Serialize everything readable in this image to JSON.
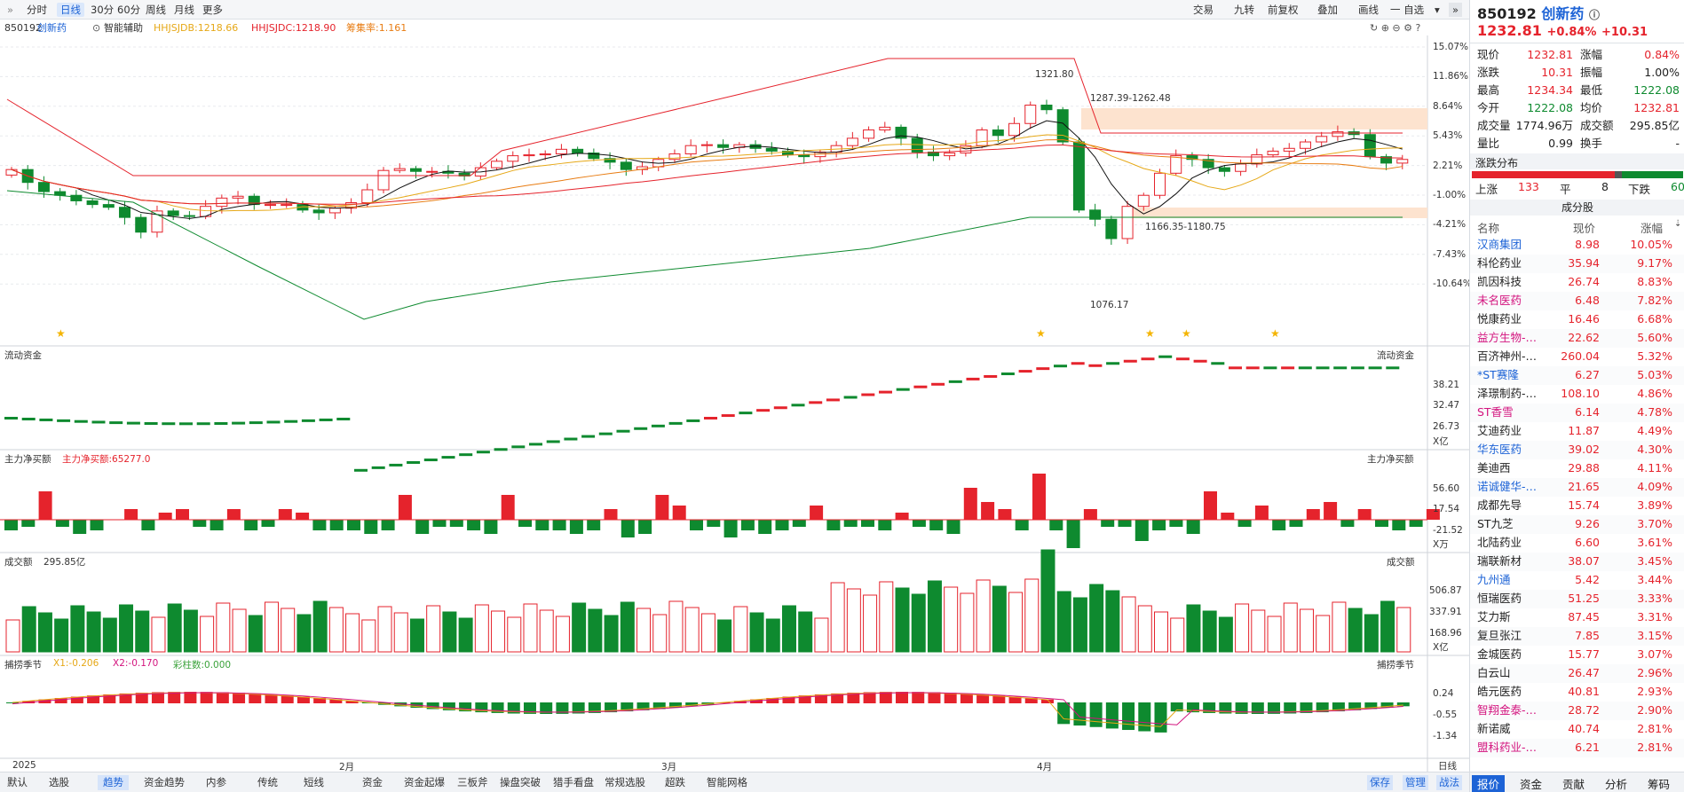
{
  "toolbar": {
    "period_tabs": [
      "分时",
      "日线",
      "30分",
      "60分",
      "周线",
      "月线",
      "更多"
    ],
    "active_tab": "日线",
    "right_buttons": [
      "交易",
      "九转",
      "前复权",
      "叠加",
      "画线",
      "一 自选"
    ]
  },
  "info": {
    "code": "850192",
    "name": "创新药",
    "smart": "智能辅助",
    "hhjsjdb": "HHJSJDB:1218.66",
    "hhjsjdc": "HHJSJDC:1218.90",
    "ratio": "筹集率:1.161"
  },
  "price_axis": [
    "15.07%",
    "11.86%",
    "8.64%",
    "5.43%",
    "2.21%",
    "-1.00%",
    "-4.21%",
    "-7.43%",
    "-10.64%"
  ],
  "annotations": {
    "high": "1321.80",
    "range1": "1287.39-1262.48",
    "range2": "1166.35-1180.75",
    "low": "1076.17"
  },
  "panels": {
    "flow": {
      "title": "流动资金",
      "right_title": "流动资金",
      "axis": [
        "38.21",
        "32.47",
        "26.73"
      ],
      "unit": "X亿"
    },
    "net": {
      "title": "主力净买额",
      "value": "主力净买额:65277.0",
      "right_title": "主力净买额",
      "axis": [
        "56.60",
        "17.54",
        "-21.52"
      ],
      "unit": "X万"
    },
    "vol": {
      "title": "成交额",
      "value": "295.85亿",
      "right_title": "成交额",
      "axis": [
        "506.87",
        "337.91",
        "168.96"
      ],
      "unit": "X亿"
    },
    "season": {
      "title": "捕捞季节",
      "x1": "X1:-0.206",
      "x2": "X2:-0.170",
      "bars": "彩柱数:0.000",
      "right_title": "捕捞季节",
      "axis": [
        "0.24",
        "-0.55",
        "-1.34"
      ]
    }
  },
  "date_axis": [
    "2025",
    "2月",
    "3月",
    "4月"
  ],
  "bottom_tabs": [
    "默认",
    "选股",
    "趋势",
    "资金趋势",
    "内参",
    "传统",
    "短线",
    "资金",
    "资金起爆",
    "三板斧",
    "操盘突破",
    "猎手看盘",
    "常规选股",
    "超跌",
    "智能网格"
  ],
  "active_bottom": "趋势",
  "bottom_right": [
    "保存",
    "管理",
    "战法",
    "日线"
  ],
  "side": {
    "code": "850192",
    "name": "创新药",
    "price": "1232.81",
    "chg_pct": "+0.84%",
    "chg": "+10.31",
    "quotes": [
      {
        "l1": "现价",
        "v1": "1232.81",
        "c1": "red",
        "l2": "涨幅",
        "v2": "0.84%",
        "c2": "red"
      },
      {
        "l1": "涨跌",
        "v1": "10.31",
        "c1": "red",
        "l2": "振幅",
        "v2": "1.00%",
        "c2": "dark"
      },
      {
        "l1": "最高",
        "v1": "1234.34",
        "c1": "red",
        "l2": "最低",
        "v2": "1222.08",
        "c2": "green"
      },
      {
        "l1": "今开",
        "v1": "1222.08",
        "c1": "green",
        "l2": "均价",
        "v2": "1232.81",
        "c2": "red"
      },
      {
        "l1": "成交量",
        "v1": "1774.96万",
        "c1": "dark",
        "l2": "成交额",
        "v2": "295.85亿",
        "c2": "dark"
      },
      {
        "l1": "量比",
        "v1": "0.99",
        "c1": "dark",
        "l2": "换手",
        "v2": "-",
        "c2": "dark"
      }
    ],
    "dist_title": "涨跌分布",
    "up_label": "上涨",
    "up": "133",
    "flat_label": "平",
    "flat": "8",
    "down_label": "下跌",
    "down": "60",
    "cons_title": "成分股",
    "headers": [
      "名称",
      "现价",
      "涨幅"
    ],
    "stocks": [
      {
        "n": "汉商集团",
        "p": "8.98",
        "c": "10.05%",
        "nc": "blue"
      },
      {
        "n": "科伦药业",
        "p": "35.94",
        "c": "9.17%",
        "nc": "dark"
      },
      {
        "n": "凯因科技",
        "p": "26.74",
        "c": "8.83%",
        "nc": "dark"
      },
      {
        "n": "未名医药",
        "p": "6.48",
        "c": "7.82%",
        "nc": "mag"
      },
      {
        "n": "悦康药业",
        "p": "16.46",
        "c": "6.68%",
        "nc": "dark"
      },
      {
        "n": "益方生物-…",
        "p": "22.62",
        "c": "5.60%",
        "nc": "mag"
      },
      {
        "n": "百济神州-…",
        "p": "260.04",
        "c": "5.32%",
        "nc": "dark"
      },
      {
        "n": "*ST赛隆",
        "p": "6.27",
        "c": "5.03%",
        "nc": "blue"
      },
      {
        "n": "泽璟制药-…",
        "p": "108.10",
        "c": "4.86%",
        "nc": "dark"
      },
      {
        "n": "ST香雪",
        "p": "6.14",
        "c": "4.78%",
        "nc": "mag"
      },
      {
        "n": "艾迪药业",
        "p": "11.87",
        "c": "4.49%",
        "nc": "dark"
      },
      {
        "n": "华东医药",
        "p": "39.02",
        "c": "4.30%",
        "nc": "blue"
      },
      {
        "n": "美迪西",
        "p": "29.88",
        "c": "4.11%",
        "nc": "dark"
      },
      {
        "n": "诺诚健华-…",
        "p": "21.65",
        "c": "4.09%",
        "nc": "blue"
      },
      {
        "n": "成都先导",
        "p": "15.74",
        "c": "3.89%",
        "nc": "dark"
      },
      {
        "n": "ST九芝",
        "p": "9.26",
        "c": "3.70%",
        "nc": "dark"
      },
      {
        "n": "北陆药业",
        "p": "6.60",
        "c": "3.61%",
        "nc": "dark"
      },
      {
        "n": "瑞联新材",
        "p": "38.07",
        "c": "3.45%",
        "nc": "dark"
      },
      {
        "n": "九州通",
        "p": "5.42",
        "c": "3.44%",
        "nc": "blue"
      },
      {
        "n": "恒瑞医药",
        "p": "51.25",
        "c": "3.33%",
        "nc": "dark"
      },
      {
        "n": "艾力斯",
        "p": "87.45",
        "c": "3.31%",
        "nc": "dark"
      },
      {
        "n": "复旦张江",
        "p": "7.85",
        "c": "3.15%",
        "nc": "dark"
      },
      {
        "n": "金城医药",
        "p": "15.77",
        "c": "3.07%",
        "nc": "dark"
      },
      {
        "n": "白云山",
        "p": "26.47",
        "c": "2.96%",
        "nc": "dark"
      },
      {
        "n": "皓元医药",
        "p": "40.81",
        "c": "2.93%",
        "nc": "dark"
      },
      {
        "n": "智翔金泰-…",
        "p": "28.72",
        "c": "2.90%",
        "nc": "mag"
      },
      {
        "n": "新诺威",
        "p": "40.74",
        "c": "2.81%",
        "nc": "dark"
      },
      {
        "n": "盟科药业-…",
        "p": "6.21",
        "c": "2.81%",
        "nc": "mag"
      }
    ],
    "bottom_tabs": [
      "报价",
      "资金",
      "贡献",
      "分析",
      "筹码"
    ]
  },
  "chart_data": {
    "type": "candlestick",
    "x": [
      "2025",
      "2月",
      "3月",
      "4月"
    ],
    "closes": [
      2.2,
      0.8,
      -0.2,
      -0.6,
      -1.2,
      -1.6,
      -1.9,
      -3.0,
      -4.6,
      -2.3,
      -2.8,
      -2.9,
      -1.8,
      -0.9,
      -0.7,
      -1.6,
      -1.6,
      -1.6,
      -2.2,
      -2.5,
      -2.0,
      -1.4,
      0.0,
      2.1,
      2.3,
      2.0,
      2.0,
      1.8,
      1.5,
      2.4,
      3.1,
      3.7,
      3.8,
      3.9,
      4.4,
      4.0,
      3.4,
      3.0,
      2.2,
      2.5,
      3.3,
      3.9,
      4.8,
      4.9,
      4.6,
      4.9,
      4.5,
      4.2,
      3.8,
      3.6,
      4.1,
      4.8,
      5.6,
      6.5,
      6.8,
      5.6,
      4.1,
      3.7,
      4.0,
      4.8,
      6.5,
      5.9,
      7.2,
      9.2,
      8.7,
      5.2,
      -2.2,
      -3.2,
      -5.3,
      -1.8,
      -0.6,
      1.8,
      3.7,
      3.3,
      2.4,
      2.0,
      2.8,
      3.8,
      4.2,
      4.5,
      5.2,
      5.8,
      6.3,
      6.0,
      3.6,
      2.9,
      3.3
    ],
    "title": ""
  }
}
